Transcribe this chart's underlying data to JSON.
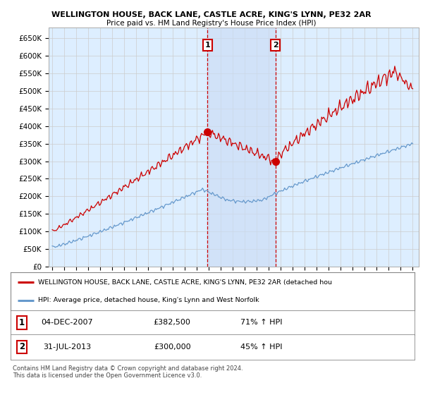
{
  "title1": "WELLINGTON HOUSE, BACK LANE, CASTLE ACRE, KING'S LYNN, PE32 2AR",
  "title2": "Price paid vs. HM Land Registry's House Price Index (HPI)",
  "background_color": "#ffffff",
  "grid_color": "#cccccc",
  "plot_bg_color": "#ddeeff",
  "red_line_color": "#cc0000",
  "blue_line_color": "#6699cc",
  "sale1_year": 2007.92,
  "sale1_price": 382500,
  "sale1_label": "1",
  "sale2_year": 2013.58,
  "sale2_price": 300000,
  "sale2_label": "2",
  "vline_color": "#cc0000",
  "shade_color": "#ccddf5",
  "legend_red": "WELLINGTON HOUSE, BACK LANE, CASTLE ACRE, KING'S LYNN, PE32 2AR (detached hou",
  "legend_blue": "HPI: Average price, detached house, King's Lynn and West Norfolk",
  "table_row1": [
    "1",
    "04-DEC-2007",
    "£382,500",
    "71% ↑ HPI"
  ],
  "table_row2": [
    "2",
    "31-JUL-2013",
    "£300,000",
    "45% ↑ HPI"
  ],
  "footer": "Contains HM Land Registry data © Crown copyright and database right 2024.\nThis data is licensed under the Open Government Licence v3.0.",
  "ylim": [
    0,
    680000
  ],
  "yticks": [
    0,
    50000,
    100000,
    150000,
    200000,
    250000,
    300000,
    350000,
    400000,
    450000,
    500000,
    550000,
    600000,
    650000
  ],
  "xlim_start": 1994.7,
  "xlim_end": 2025.5
}
